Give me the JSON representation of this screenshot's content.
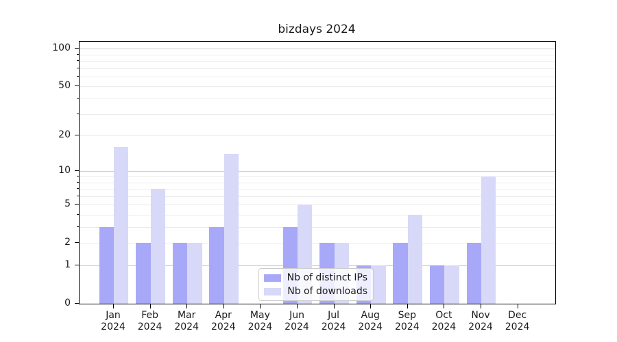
{
  "colors": {
    "background": "#ffffff",
    "frame": "#000000",
    "text": "#1a1a1a",
    "major_grid": "#cccccc",
    "minor_grid": "#ebebeb",
    "series_distinct_ips": "#a8a8f8",
    "series_downloads": "#d8d8f8"
  },
  "chart_data": {
    "type": "bar",
    "title": "bizdays 2024",
    "categories": [
      "Jan 2024",
      "Feb 2024",
      "Mar 2024",
      "Apr 2024",
      "May 2024",
      "Jun 2024",
      "Jul 2024",
      "Aug 2024",
      "Sep 2024",
      "Oct 2024",
      "Nov 2024",
      "Dec 2024"
    ],
    "series": [
      {
        "key": "distinct-ips",
        "name": "Nb of distinct IPs",
        "color": "#a8a8f8",
        "values": [
          3,
          2,
          2,
          3,
          0,
          3,
          2,
          1,
          2,
          1,
          2,
          0
        ]
      },
      {
        "key": "downloads",
        "name": "Nb of downloads",
        "color": "#d8d8f8",
        "values": [
          16,
          7,
          2,
          14,
          0,
          5,
          2,
          1,
          4,
          1,
          9,
          0
        ]
      }
    ],
    "xlabel": "",
    "ylabel": "",
    "y_axis": {
      "scale": "log10(1+value)",
      "tick_values": [
        0,
        1,
        2,
        5,
        10,
        20,
        50,
        100
      ],
      "tick_labels": [
        "0",
        "1",
        "2",
        "5",
        "10",
        "20",
        "50",
        "100"
      ],
      "major_gridlines": [
        1,
        10,
        100
      ],
      "minor_gridlines": [
        2,
        3,
        4,
        5,
        6,
        7,
        8,
        9,
        20,
        30,
        40,
        50,
        60,
        70,
        80,
        90
      ],
      "range_bottom": 0,
      "range_top": 115
    },
    "grid": true,
    "legend_position": "lower center",
    "bar_layout": "paired, distinct IPs left of tick, downloads right of tick"
  }
}
